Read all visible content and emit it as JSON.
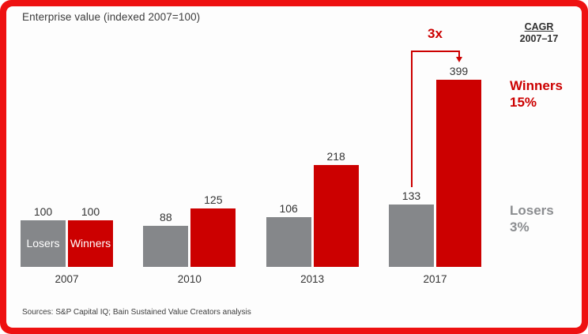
{
  "frame": {
    "border_color": "#ee1111",
    "background": "#fdfdfd"
  },
  "title": "Enterprise value (indexed 2007=100)",
  "cagr_header": {
    "line1": "CAGR",
    "line2": "2007–17"
  },
  "annotation": {
    "multiplier_label": "3x",
    "color": "#cc0000"
  },
  "legend": {
    "winners": {
      "label": "Winners",
      "value": "15%",
      "color": "#cc0000"
    },
    "losers": {
      "label": "Losers",
      "value": "3%",
      "color": "#8b8d90"
    }
  },
  "source": "Sources: S&P Capital IQ; Bain Sustained Value Creators analysis",
  "chart_data": {
    "type": "bar",
    "title": "Enterprise value (indexed 2007=100)",
    "categories": [
      "2007",
      "2010",
      "2013",
      "2017"
    ],
    "series": [
      {
        "name": "Losers",
        "color": "#85878a",
        "values": [
          100,
          88,
          106,
          133
        ]
      },
      {
        "name": "Winners",
        "color": "#cc0000",
        "values": [
          100,
          125,
          218,
          399
        ]
      }
    ],
    "in_bar_series_labels_on_first_group": true,
    "value_labels": true,
    "xlabel": "",
    "ylabel": "",
    "ylim": [
      0,
      420
    ],
    "grid": false,
    "axis_lines": false,
    "annotations": [
      {
        "text": "3x",
        "meaning": "Winners 2017 value is ~3x Losers 2017 value",
        "from_category": "2017",
        "from_series": "Losers",
        "to_series": "Winners"
      }
    ],
    "legend_position": "right"
  }
}
